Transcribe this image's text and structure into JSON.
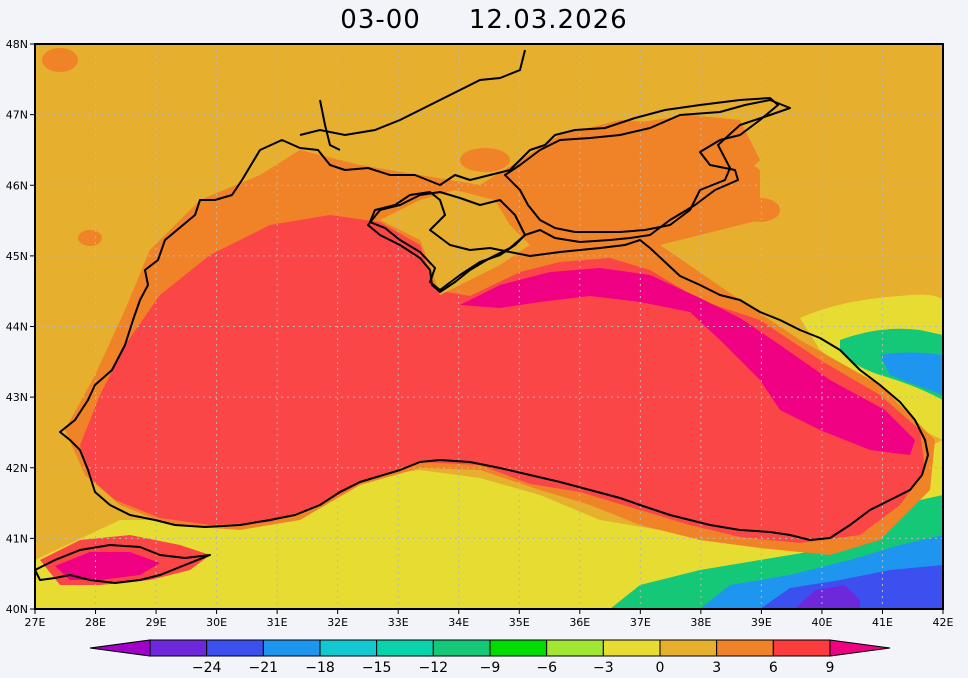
{
  "title": {
    "time": "03-00",
    "date": "12.03.2026"
  },
  "latitude_labels": [
    "40N",
    "41N",
    "42N",
    "43N",
    "44N",
    "45N",
    "46N",
    "47N",
    "48N"
  ],
  "longitude_labels": [
    "27E",
    "28E",
    "29E",
    "30E",
    "31E",
    "32E",
    "33E",
    "34E",
    "35E",
    "36E",
    "37E",
    "38E",
    "39E",
    "40E",
    "41E",
    "42E"
  ],
  "colorbar": {
    "labels": [
      "-24",
      "-21",
      "-18",
      "-15",
      "-12",
      "-9",
      "-6",
      "-3",
      "0",
      "3",
      "6",
      "9"
    ],
    "colors": [
      "#a000c8",
      "#6e28dc",
      "#3c50f0",
      "#1e96f0",
      "#14c8d2",
      "#0ad2aa",
      "#14c878",
      "#00dc00",
      "#a0e632",
      "#e6dc32",
      "#e6af2d",
      "#f08228",
      "#fa3c3c",
      "#f00082"
    ]
  },
  "field_colors": {
    "land": "#e6af2d",
    "coastal_warm": "#f08228",
    "sea": "#fa4646",
    "hot": "#f00082",
    "cool_land": "#e6dc32",
    "cold": "#14c878",
    "colder": "#3c50f0",
    "coldest": "#6e28dc"
  }
}
